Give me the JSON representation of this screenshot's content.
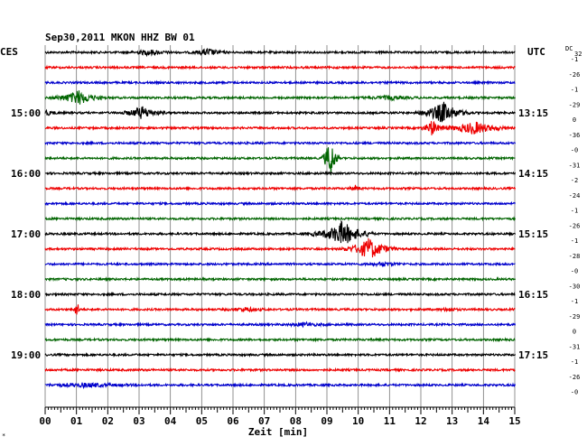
{
  "chart_data": {
    "type": "line",
    "title": "Sep30,2011   MKON HHZ BW 01",
    "left_tz": "CES",
    "right_tz": "UTC",
    "dc_label": "DC",
    "dc_unit": "32",
    "xlabel": "Zeit [min]",
    "x_ticks": [
      "00",
      "01",
      "02",
      "03",
      "04",
      "05",
      "06",
      "07",
      "08",
      "09",
      "10",
      "11",
      "12",
      "13",
      "14",
      "15"
    ],
    "xlim": [
      0,
      15
    ],
    "trace_colors": [
      "#000000",
      "#ee0000",
      "#0000cc",
      "#006400"
    ],
    "left_hour_labels": [
      {
        "trace": 4,
        "text": "15:00"
      },
      {
        "trace": 8,
        "text": "16:00"
      },
      {
        "trace": 12,
        "text": "17:00"
      },
      {
        "trace": 16,
        "text": "18:00"
      },
      {
        "trace": 20,
        "text": "19:00"
      }
    ],
    "right_hour_labels": [
      {
        "trace": 4,
        "text": "13:15"
      },
      {
        "trace": 8,
        "text": "14:15"
      },
      {
        "trace": 12,
        "text": "15:15"
      },
      {
        "trace": 16,
        "text": "16:15"
      },
      {
        "trace": 20,
        "text": "17:15"
      }
    ],
    "dc_offsets": [
      "-1",
      "-26",
      "-1",
      "-29",
      "0",
      "-36",
      "-0",
      "-31",
      "-2",
      "-24",
      "-1",
      "-26",
      "-1",
      "-28",
      "-0",
      "-30",
      "-1",
      "-29",
      "0",
      "-31",
      "-1",
      "-26",
      "-0"
    ],
    "events": [
      {
        "trace": 0,
        "minute": 3.3,
        "amp": 3,
        "width": 0.3
      },
      {
        "trace": 0,
        "minute": 5.2,
        "amp": 4,
        "width": 0.25
      },
      {
        "trace": 3,
        "minute": 1.05,
        "amp": 8,
        "width": 0.35
      },
      {
        "trace": 3,
        "minute": 11.0,
        "amp": 2,
        "width": 0.4
      },
      {
        "trace": 4,
        "minute": 0.0,
        "amp": 3,
        "width": 0.2
      },
      {
        "trace": 4,
        "minute": 3.1,
        "amp": 7,
        "width": 0.3
      },
      {
        "trace": 4,
        "minute": 12.7,
        "amp": 12,
        "width": 0.35
      },
      {
        "trace": 5,
        "minute": 12.35,
        "amp": 9,
        "width": 0.15
      },
      {
        "trace": 5,
        "minute": 13.7,
        "amp": 7,
        "width": 0.45
      },
      {
        "trace": 7,
        "minute": 9.1,
        "amp": 23,
        "width": 0.12
      },
      {
        "trace": 9,
        "minute": 9.9,
        "amp": 3,
        "width": 0.1
      },
      {
        "trace": 12,
        "minute": 9.5,
        "amp": 14,
        "width": 0.4
      },
      {
        "trace": 13,
        "minute": 10.35,
        "amp": 12,
        "width": 0.35
      },
      {
        "trace": 14,
        "minute": 10.8,
        "amp": 2,
        "width": 0.3
      },
      {
        "trace": 17,
        "minute": 1.0,
        "amp": 10,
        "width": 0.05
      },
      {
        "trace": 17,
        "minute": 6.4,
        "amp": 2,
        "width": 0.3
      },
      {
        "trace": 17,
        "minute": 12.9,
        "amp": 2,
        "width": 0.15
      },
      {
        "trace": 18,
        "minute": 8.3,
        "amp": 2,
        "width": 0.3
      },
      {
        "trace": 22,
        "minute": 1.3,
        "amp": 2,
        "width": 0.8
      }
    ]
  }
}
